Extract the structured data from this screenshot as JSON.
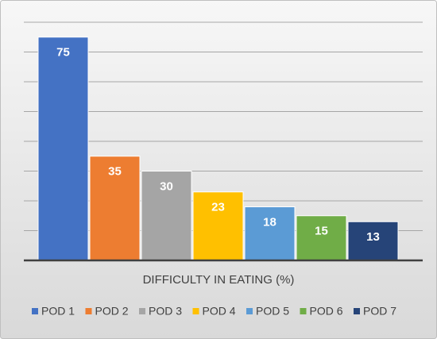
{
  "chart_data": {
    "type": "bar",
    "x_label": "DIFFICULTY IN EATING (%)",
    "series": [
      {
        "name": "POD 1",
        "color": "#4472c4",
        "values": [
          75
        ]
      },
      {
        "name": "POD 2",
        "color": "#ed7d31",
        "values": [
          35
        ]
      },
      {
        "name": "POD 3",
        "color": "#a5a5a5",
        "values": [
          30
        ]
      },
      {
        "name": "POD 4",
        "color": "#ffc000",
        "values": [
          23
        ]
      },
      {
        "name": "POD 5",
        "color": "#5b9bd5",
        "values": [
          18
        ]
      },
      {
        "name": "POD 6",
        "color": "#70ad47",
        "values": [
          15
        ]
      },
      {
        "name": "POD 7",
        "color": "#264478",
        "values": [
          13
        ]
      }
    ],
    "ylim": [
      0,
      80
    ],
    "yticks": [
      0,
      10,
      20,
      30,
      40,
      50,
      60,
      70,
      80
    ],
    "grid": true,
    "legend": "bottom"
  }
}
